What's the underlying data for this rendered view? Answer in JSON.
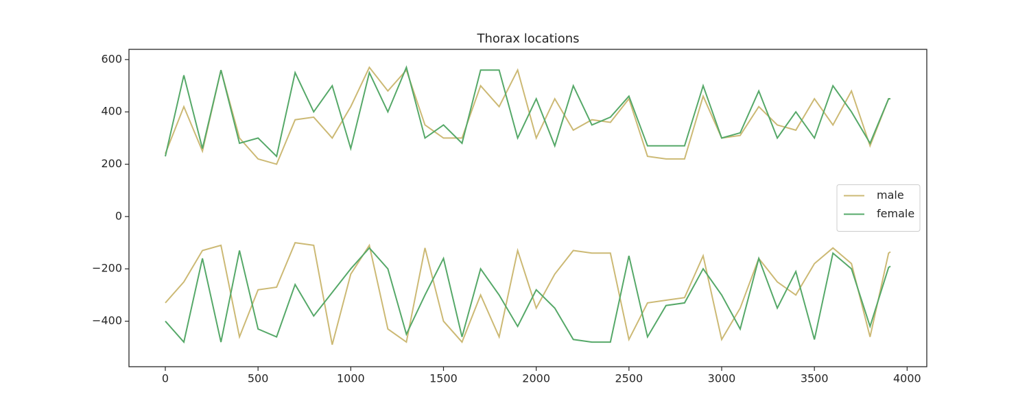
{
  "chart_data": {
    "type": "line",
    "title": "Thorax locations",
    "x": [
      0,
      100,
      200,
      300,
      400,
      500,
      600,
      700,
      800,
      900,
      1000,
      1100,
      1200,
      1300,
      1400,
      1500,
      1600,
      1700,
      1800,
      1900,
      2000,
      2100,
      2200,
      2300,
      2400,
      2500,
      2600,
      2700,
      2800,
      2900,
      3000,
      3100,
      3200,
      3300,
      3400,
      3500,
      3600,
      3700,
      3800,
      3900,
      3910
    ],
    "series": [
      {
        "name": "male",
        "color": "#ccb974",
        "values": [
          240,
          420,
          250,
          560,
          300,
          220,
          200,
          370,
          380,
          300,
          420,
          570,
          480,
          560,
          350,
          300,
          300,
          500,
          420,
          560,
          300,
          450,
          330,
          370,
          360,
          450,
          230,
          220,
          220,
          460,
          300,
          310,
          420,
          350,
          330,
          450,
          350,
          480,
          270,
          450,
          450
        ]
      },
      {
        "name": "female",
        "color": "#55a868",
        "values": [
          230,
          540,
          260,
          560,
          280,
          300,
          230,
          550,
          400,
          500,
          260,
          550,
          400,
          570,
          300,
          350,
          280,
          560,
          560,
          300,
          450,
          270,
          500,
          350,
          380,
          460,
          270,
          270,
          270,
          500,
          300,
          320,
          480,
          300,
          400,
          300,
          500,
          400,
          280,
          450,
          450
        ]
      },
      {
        "color": "#ccb974",
        "values": [
          -330,
          -250,
          -130,
          -110,
          -460,
          -280,
          -270,
          -100,
          -110,
          -490,
          -220,
          -110,
          -430,
          -480,
          -120,
          -400,
          -480,
          -300,
          -460,
          -130,
          -350,
          -220,
          -130,
          -140,
          -140,
          -470,
          -330,
          -320,
          -310,
          -150,
          -470,
          -350,
          -160,
          -250,
          -300,
          -180,
          -120,
          -180,
          -460,
          -140,
          -135
        ]
      },
      {
        "color": "#55a868",
        "values": [
          -400,
          -480,
          -160,
          -480,
          -130,
          -430,
          -460,
          -260,
          -380,
          -290,
          -200,
          -120,
          -200,
          -450,
          -300,
          -160,
          -460,
          -200,
          -300,
          -420,
          -280,
          -350,
          -470,
          -480,
          -480,
          -150,
          -460,
          -340,
          -330,
          -200,
          -300,
          -430,
          -160,
          -350,
          -210,
          -470,
          -140,
          -200,
          -420,
          -195,
          -190
        ]
      }
    ],
    "xlim": [
      -196,
      4106
    ],
    "xticks": [
      0,
      500,
      1000,
      1500,
      2000,
      2500,
      3000,
      3500,
      4000
    ],
    "ylim": [
      -574,
      639
    ],
    "yticks": [
      {
        "value": -400,
        "label": "−400"
      },
      {
        "value": -200,
        "label": "−200"
      },
      0,
      200,
      400,
      600
    ],
    "legend": "center right"
  }
}
